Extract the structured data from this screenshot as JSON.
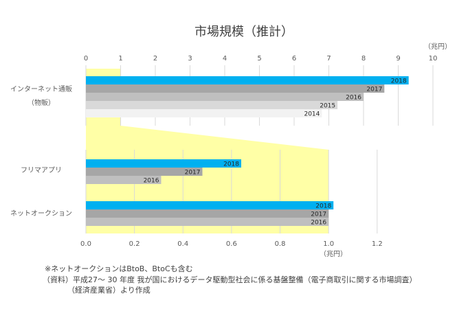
{
  "chart_data": [
    {
      "type": "bar",
      "orientation": "horizontal",
      "title": "市場規模（推計）",
      "category_label_lines": [
        "インターネット通販",
        "（物販）"
      ],
      "xlim": [
        0,
        10
      ],
      "xticks": [
        0,
        1,
        2,
        3,
        4,
        5,
        6,
        7,
        8,
        9,
        10
      ],
      "x_unit": "（兆円）",
      "grid": true,
      "series": [
        {
          "name": "2018",
          "color": "#00b0f0",
          "values": [
            9.3
          ]
        },
        {
          "name": "2017",
          "color": "#a6a6a6",
          "values": [
            8.6
          ]
        },
        {
          "name": "2016",
          "color": "#bfbfbf",
          "values": [
            8.0
          ]
        },
        {
          "name": "2015",
          "color": "#d9d9d9",
          "values": [
            7.25
          ]
        },
        {
          "name": "2014",
          "color": "#f2f2f2",
          "values": [
            6.8
          ]
        }
      ]
    },
    {
      "type": "bar",
      "orientation": "horizontal",
      "categories": [
        "フリマアプリ",
        "ネットオークション"
      ],
      "xlim": [
        0,
        1.43
      ],
      "xticks": [
        {
          "value": 0,
          "label": "0.0"
        },
        0.2,
        0.4,
        0.6,
        0.8,
        {
          "value": 1,
          "label": "1.0"
        },
        1.2
      ],
      "x_unit": "（兆円）",
      "grid": true,
      "series": [
        {
          "name": "2018",
          "color": "#00b0f0",
          "values": [
            0.64,
            1.02
          ]
        },
        {
          "name": "2017",
          "color": "#a6a6a6",
          "values": [
            0.48,
            1.0
          ]
        },
        {
          "name": "2016",
          "color": "#bfbfbf",
          "values": [
            0.31,
            1.0
          ]
        }
      ]
    }
  ],
  "notes": [
    "※ネットオークションはBtoB、BtoCも含む",
    "（資料）平成27～ 30 年度 我が国におけるデータ駆動型社会に係る基盤整備（電子商取引に関する市場調査）",
    "（経済産業省）より作成"
  ]
}
